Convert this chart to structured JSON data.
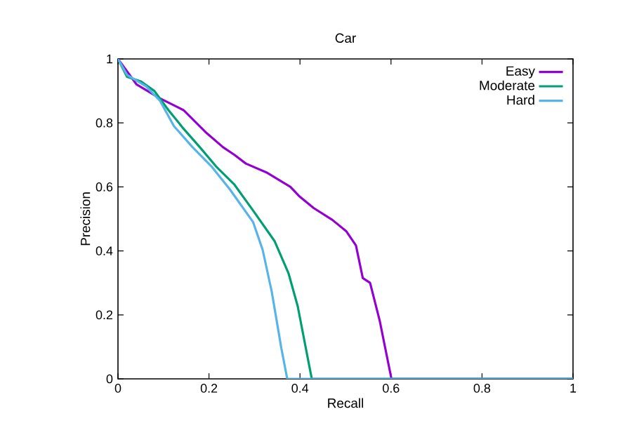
{
  "chart_data": {
    "type": "line",
    "title": "Car",
    "xlabel": "Recall",
    "ylabel": "Precision",
    "xlim": [
      0,
      1
    ],
    "ylim": [
      0,
      1
    ],
    "xticks": [
      0,
      0.2,
      0.4,
      0.6,
      0.8,
      1
    ],
    "yticks": [
      0,
      0.2,
      0.4,
      0.6,
      0.8,
      1
    ],
    "legend": "top right",
    "grid": false,
    "marker": "none",
    "line_style": "solid",
    "series": [
      {
        "name": "Easy",
        "color": "#9400d3",
        "x": [
          0,
          0.041,
          0.092,
          0.144,
          0.195,
          0.231,
          0.256,
          0.281,
          0.328,
          0.379,
          0.399,
          0.43,
          0.471,
          0.502,
          0.523,
          0.538,
          0.554,
          0.575,
          0.601,
          1
        ],
        "values": [
          1,
          0.92,
          0.877,
          0.84,
          0.768,
          0.724,
          0.7,
          0.673,
          0.644,
          0.6,
          0.57,
          0.534,
          0.497,
          0.461,
          0.417,
          0.315,
          0.3,
          0.183,
          0,
          0
        ]
      },
      {
        "name": "Moderate",
        "color": "#009e73",
        "x": [
          0,
          0.02,
          0.05,
          0.08,
          0.111,
          0.144,
          0.18,
          0.215,
          0.256,
          0.297,
          0.344,
          0.375,
          0.395,
          0.421,
          0.426,
          1
        ],
        "values": [
          1,
          0.944,
          0.93,
          0.9,
          0.84,
          0.782,
          0.724,
          0.665,
          0.607,
          0.526,
          0.431,
          0.329,
          0.227,
          0.036,
          0,
          0
        ]
      },
      {
        "name": "Hard",
        "color": "#56b4e9",
        "x": [
          0,
          0.02,
          0.062,
          0.092,
          0.123,
          0.164,
          0.205,
          0.246,
          0.297,
          0.318,
          0.338,
          0.359,
          0.372,
          1
        ],
        "values": [
          1,
          0.95,
          0.914,
          0.87,
          0.79,
          0.724,
          0.665,
          0.592,
          0.49,
          0.403,
          0.272,
          0.096,
          0,
          0
        ]
      }
    ]
  }
}
